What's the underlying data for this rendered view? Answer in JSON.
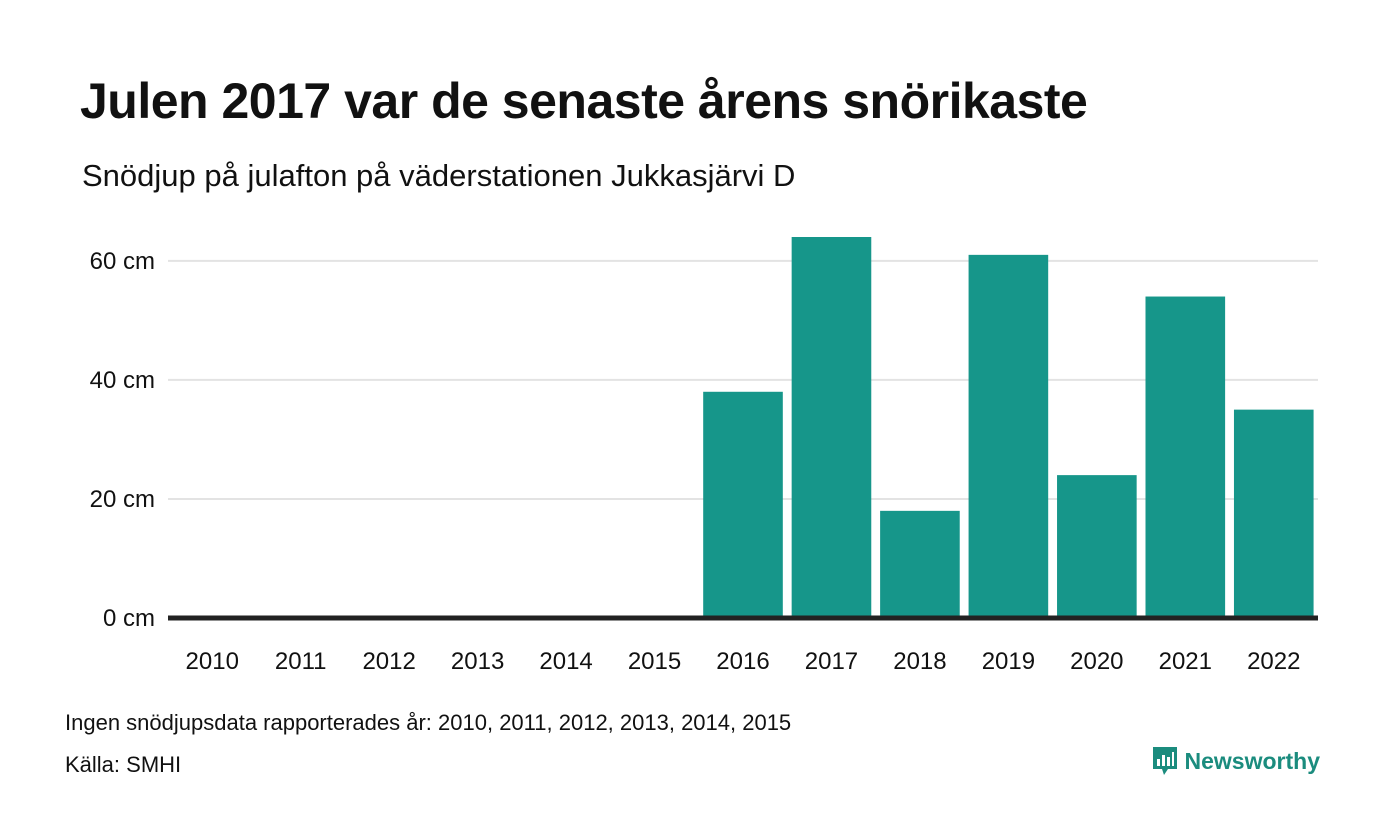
{
  "title": "Julen 2017 var de senaste årens snörikaste",
  "subtitle": "Snödjup på julafton på väderstationen Jukkasjärvi D",
  "note": "Ingen snödjupsdata rapporterades år: 2010, 2011, 2012, 2013, 2014, 2015",
  "source": "Källa: SMHI",
  "brand": {
    "name": "Newsworthy",
    "color": "#1b8c7e",
    "icon": "newsworthy-logo-icon"
  },
  "chart_data": {
    "type": "bar",
    "categories": [
      "2010",
      "2011",
      "2012",
      "2013",
      "2014",
      "2015",
      "2016",
      "2017",
      "2018",
      "2019",
      "2020",
      "2021",
      "2022"
    ],
    "values": [
      null,
      null,
      null,
      null,
      null,
      null,
      38,
      64,
      18,
      61,
      24,
      54,
      35
    ],
    "title": "Julen 2017 var de senaste årens snörikaste",
    "subtitle": "Snödjup på julafton på väderstationen Jukkasjärvi D",
    "xlabel": "",
    "ylabel": "",
    "ylim": [
      0,
      64
    ],
    "yticks": [
      0,
      20,
      40,
      60
    ],
    "ytick_labels": [
      "0 cm",
      "20 cm",
      "40 cm",
      "60 cm"
    ],
    "grid": true,
    "bar_color": "#16968a",
    "gridline_color": "#e3e3e3",
    "baseline_color": "#222222"
  }
}
